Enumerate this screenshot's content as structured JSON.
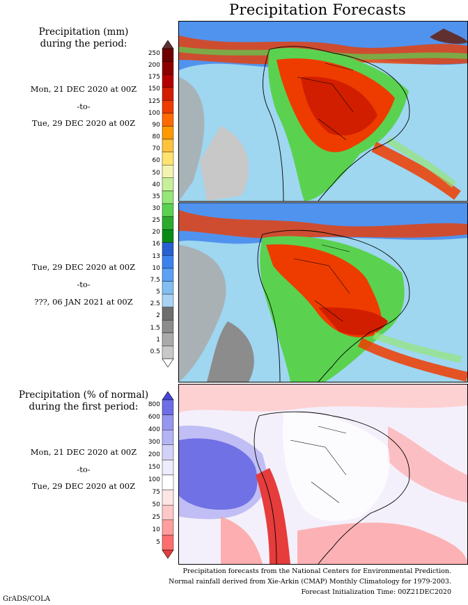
{
  "header": {
    "title": "Precipitation Forecasts"
  },
  "period_panel": {
    "heading_line1": "Precipitation (mm)",
    "heading_line2": "during the period:",
    "period1": {
      "from": "Mon, 21 DEC 2020 at 00Z",
      "sep": "-to-",
      "to": "Tue, 29 DEC 2020 at 00Z"
    },
    "period2": {
      "from": "Tue, 29 DEC 2020 at 00Z",
      "sep": "-to-",
      "to": "???, 06 JAN 2021 at 00Z"
    }
  },
  "anomaly_panel": {
    "heading_line1": "Precipitation (% of normal)",
    "heading_line2": "during the first period:",
    "period": {
      "from": "Mon, 21 DEC 2020 at 00Z",
      "sep": "-to-",
      "to": "Tue, 29 DEC 2020 at 00Z"
    }
  },
  "precip_legend": {
    "labels": [
      "250",
      "200",
      "175",
      "150",
      "125",
      "100",
      "90",
      "80",
      "70",
      "60",
      "50",
      "40",
      "35",
      "30",
      "25",
      "20",
      "16",
      "13",
      "10",
      "7.5",
      "5",
      "2.5",
      "2",
      "1.5",
      "1",
      "0.5"
    ],
    "colors": [
      "#603030",
      "#6e0000",
      "#8c0000",
      "#b40000",
      "#d21e00",
      "#ee3c00",
      "#ff6a00",
      "#ff9a00",
      "#ffc23c",
      "#ffe36e",
      "#f4f4b0",
      "#c8f09a",
      "#96e678",
      "#5ad250",
      "#2daa2d",
      "#0a8c14",
      "#2860d2",
      "#3c82ee",
      "#5aa0f5",
      "#82bef0",
      "#aad2f5",
      "#6e6e6e",
      "#8c8c8c",
      "#aaaaaa",
      "#c8c8c8",
      "#ffffff"
    ]
  },
  "pct_legend": {
    "labels": [
      "800",
      "600",
      "400",
      "300",
      "200",
      "150",
      "100",
      "75",
      "50",
      "25",
      "10",
      "5"
    ],
    "colors": [
      "#4646dc",
      "#6e6ee6",
      "#9696ee",
      "#b4b4f4",
      "#d2d2f8",
      "#ececfc",
      "#ffffff",
      "#ffe6e6",
      "#ffc8c8",
      "#ff9e9e",
      "#ff6e6e",
      "#e63c3c"
    ]
  },
  "footer": {
    "line1": "Precipitation forecasts from the National Centers for Environmental Prediction.",
    "line2": "Normal rainfall derived from Xie-Arkin (CMAP) Monthly Climatology for 1979-2003.",
    "line3": "Forecast Initialization Time: 00Z21DEC2020"
  },
  "credit": "GrADS/COLA"
}
